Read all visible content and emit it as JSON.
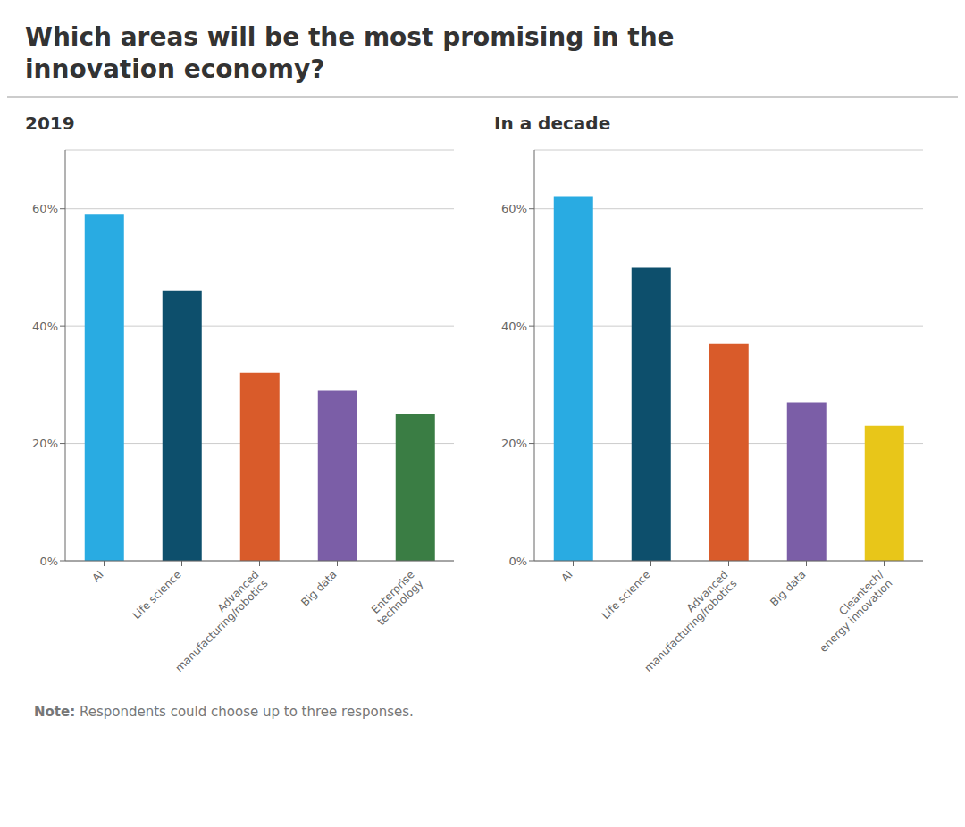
{
  "title": "Which areas will be the most promising in the\ninnovation economy?",
  "annotations": [
    "Note: Respondents could choose up to three responses."
  ],
  "chart_data": [
    {
      "type": "bar",
      "subtitle": "2019",
      "categories": [
        "AI",
        "Life science",
        "Advanced\nmanufacturing/robotics",
        "Big data",
        "Enterprise\ntechnology"
      ],
      "values": [
        59,
        46,
        32,
        29,
        25
      ],
      "colors": [
        "#29ABE2",
        "#0D4F6C",
        "#D95B2A",
        "#7B5EA7",
        "#3A7D44"
      ],
      "ylim": [
        0,
        70
      ],
      "yticks": [
        {
          "value": 0,
          "label": "0%"
        },
        {
          "value": 20,
          "label": "20%"
        },
        {
          "value": 40,
          "label": "40%"
        },
        {
          "value": 60,
          "label": "60%"
        }
      ],
      "grid": true
    },
    {
      "type": "bar",
      "subtitle": "In a decade",
      "categories": [
        "AI",
        "Life science",
        "Advanced\nmanufacturing/robotics",
        "Big data",
        "Cleantech/\nenergy innovation"
      ],
      "values": [
        62,
        50,
        37,
        27,
        23
      ],
      "colors": [
        "#29ABE2",
        "#0D4F6C",
        "#D95B2A",
        "#7B5EA7",
        "#E8C619"
      ],
      "ylim": [
        0,
        70
      ],
      "yticks": [
        {
          "value": 0,
          "label": "0%"
        },
        {
          "value": 20,
          "label": "20%"
        },
        {
          "value": 40,
          "label": "40%"
        },
        {
          "value": 60,
          "label": "60%"
        }
      ],
      "grid": true
    }
  ]
}
